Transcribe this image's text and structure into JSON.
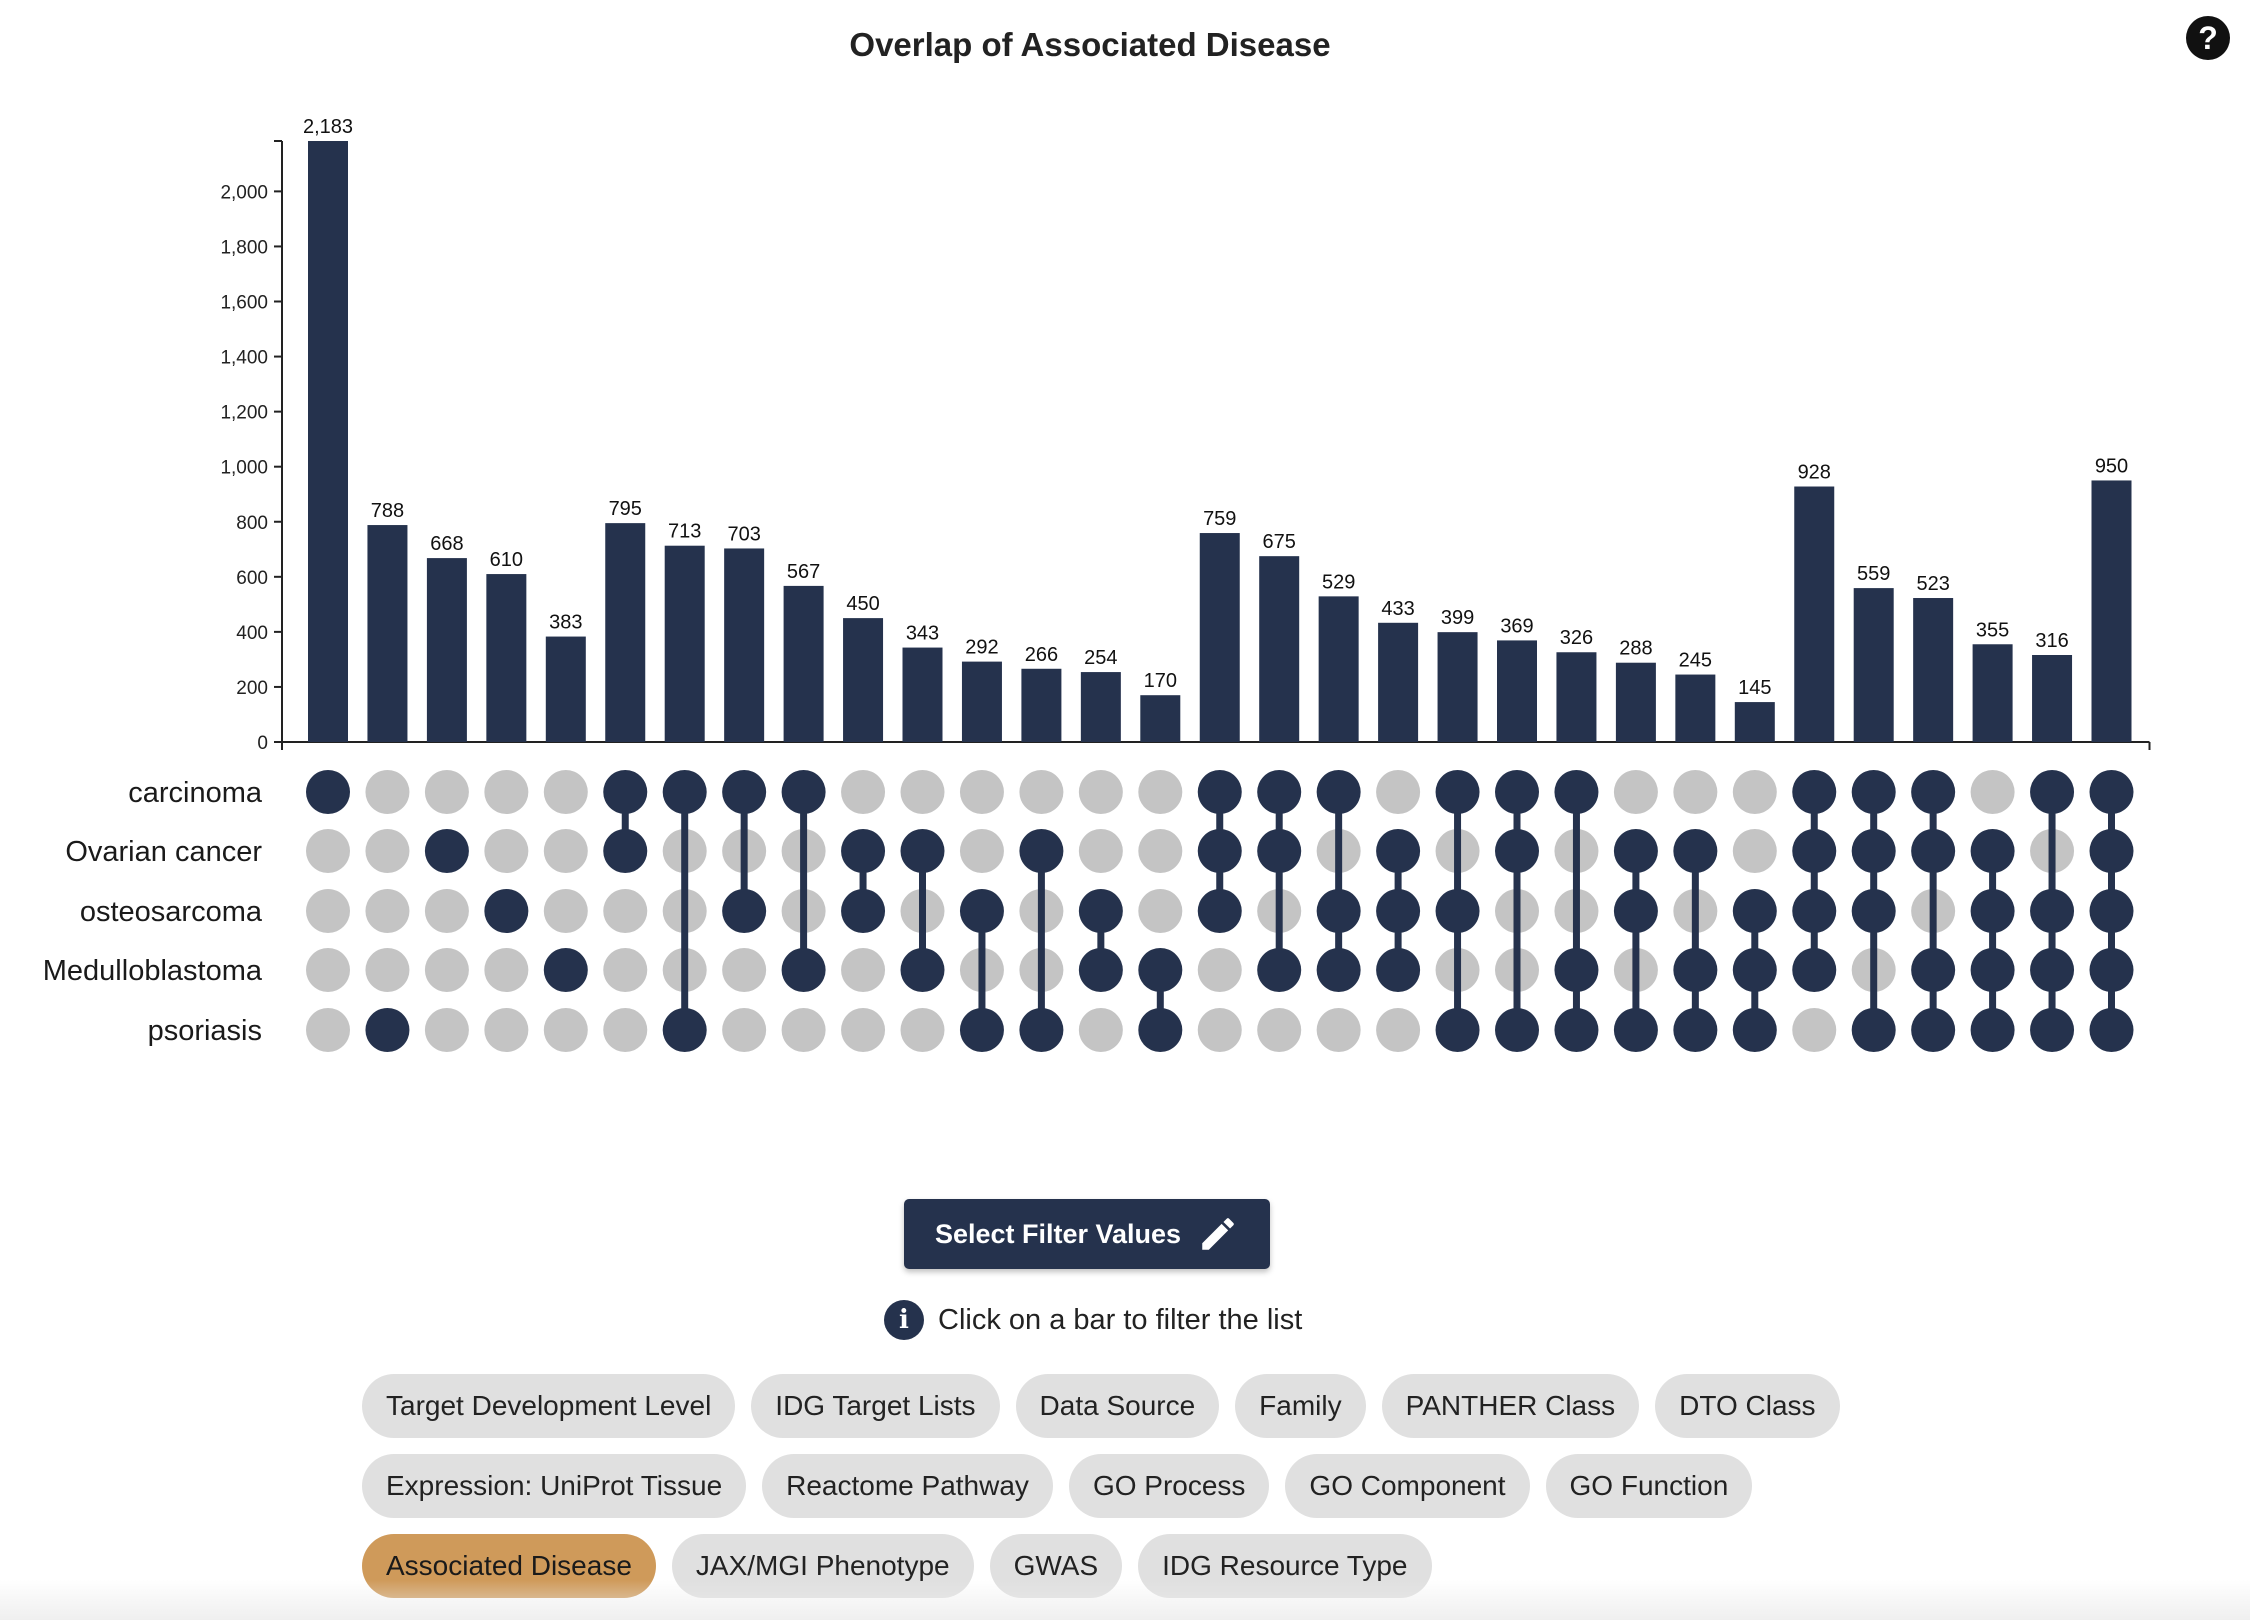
{
  "chart_data": {
    "type": "upset",
    "title": "Overlap of Associated Disease",
    "ylim": [
      0,
      2183
    ],
    "y_ticks": [
      0,
      200,
      400,
      600,
      800,
      1000,
      1200,
      1400,
      1600,
      1800,
      2000
    ],
    "y_tick_labels": [
      "0",
      "200",
      "400",
      "600",
      "800",
      "1,000",
      "1,200",
      "1,400",
      "1,600",
      "1,800",
      "2,000"
    ],
    "sets": [
      "carcinoma",
      "Ovarian cancer",
      "osteosarcoma",
      "Medulloblastoma",
      "psoriasis"
    ],
    "values": [
      2183,
      788,
      668,
      610,
      383,
      795,
      713,
      703,
      567,
      450,
      343,
      292,
      266,
      254,
      170,
      759,
      675,
      529,
      433,
      399,
      369,
      326,
      288,
      245,
      145,
      928,
      559,
      523,
      355,
      316,
      950
    ],
    "value_labels": [
      "2,183",
      "788",
      "668",
      "610",
      "383",
      "795",
      "713",
      "703",
      "567",
      "450",
      "343",
      "292",
      "266",
      "254",
      "170",
      "759",
      "675",
      "529",
      "433",
      "399",
      "369",
      "326",
      "288",
      "245",
      "145",
      "928",
      "559",
      "523",
      "355",
      "316",
      "950"
    ],
    "memberships": [
      [
        0
      ],
      [
        4
      ],
      [
        1
      ],
      [
        2
      ],
      [
        3
      ],
      [
        0,
        1
      ],
      [
        0,
        4
      ],
      [
        0,
        2
      ],
      [
        0,
        3
      ],
      [
        1,
        2
      ],
      [
        1,
        3
      ],
      [
        2,
        4
      ],
      [
        1,
        4
      ],
      [
        2,
        3
      ],
      [
        3,
        4
      ],
      [
        0,
        1,
        2
      ],
      [
        0,
        1,
        3
      ],
      [
        0,
        2,
        3
      ],
      [
        1,
        2,
        3
      ],
      [
        0,
        2,
        4
      ],
      [
        0,
        1,
        4
      ],
      [
        0,
        3,
        4
      ],
      [
        1,
        2,
        4
      ],
      [
        1,
        3,
        4
      ],
      [
        2,
        3,
        4
      ],
      [
        0,
        1,
        2,
        3
      ],
      [
        0,
        1,
        2,
        4
      ],
      [
        0,
        1,
        3,
        4
      ],
      [
        1,
        2,
        3,
        4
      ],
      [
        0,
        2,
        3,
        4
      ],
      [
        0,
        1,
        2,
        3,
        4
      ]
    ],
    "colors": {
      "bar": "#25324d",
      "dot_active": "#25324d",
      "dot_inactive": "#c4c4c4"
    }
  },
  "help_icon": "?",
  "filter_button": {
    "label": "Select Filter Values",
    "icon": "pencil-icon"
  },
  "hint": {
    "icon": "info-icon",
    "icon_glyph": "i",
    "text": "Click on a bar to filter the list"
  },
  "chips": [
    [
      {
        "label": "Target Development Level",
        "active": false
      },
      {
        "label": "IDG Target Lists",
        "active": false
      },
      {
        "label": "Data Source",
        "active": false
      },
      {
        "label": "Family",
        "active": false
      },
      {
        "label": "PANTHER Class",
        "active": false
      },
      {
        "label": "DTO Class",
        "active": false
      }
    ],
    [
      {
        "label": "Expression: UniProt Tissue",
        "active": false
      },
      {
        "label": "Reactome Pathway",
        "active": false
      },
      {
        "label": "GO Process",
        "active": false
      },
      {
        "label": "GO Component",
        "active": false
      },
      {
        "label": "GO Function",
        "active": false
      }
    ],
    [
      {
        "label": "Associated Disease",
        "active": true
      },
      {
        "label": "JAX/MGI Phenotype",
        "active": false
      },
      {
        "label": "GWAS",
        "active": false
      },
      {
        "label": "IDG Resource Type",
        "active": false
      }
    ]
  ],
  "accent_color": "#cf9a5a"
}
